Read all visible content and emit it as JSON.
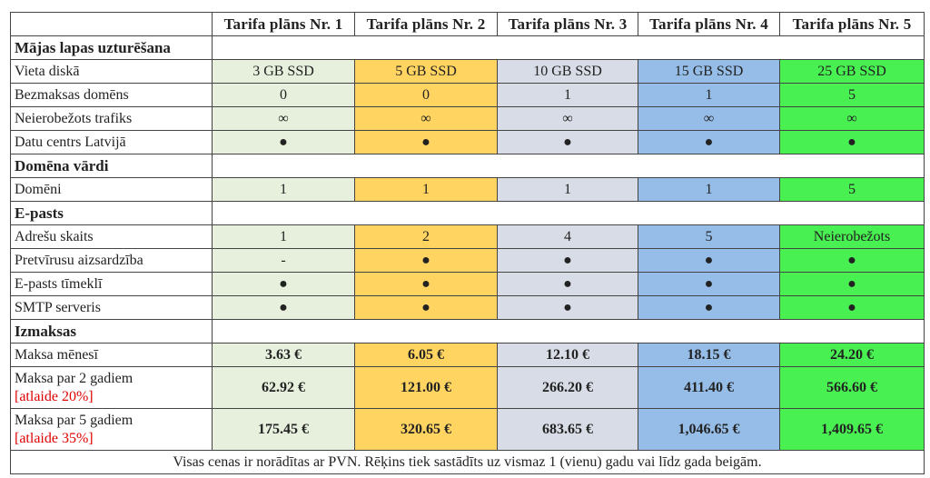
{
  "plans": [
    "Tarifa plāns Nr. 1",
    "Tarifa plāns Nr. 2",
    "Tarifa plāns Nr. 3",
    "Tarifa plāns Nr. 4",
    "Tarifa plāns Nr. 5"
  ],
  "plan_colors": [
    "#e6f0dc",
    "#ffd460",
    "#d8dce6",
    "#95bde8",
    "#48f052"
  ],
  "sections": {
    "hosting": {
      "title": "Mājas lapas uzturēšana",
      "rows": [
        {
          "label": "Vieta diskā",
          "values": [
            "3 GB SSD",
            "5 GB SSD",
            "10 GB SSD",
            "15 GB SSD",
            "25 GB SSD"
          ]
        },
        {
          "label": "Bezmaksas domēns",
          "values": [
            "0",
            "0",
            "1",
            "1",
            "5"
          ]
        },
        {
          "label": "Neierobežots trafiks",
          "values": [
            "∞",
            "∞",
            "∞",
            "∞",
            "∞"
          ]
        },
        {
          "label": "Datu centrs Latvijā",
          "values": [
            "●",
            "●",
            "●",
            "●",
            "●"
          ]
        }
      ]
    },
    "domains": {
      "title": "Domēna vārdi",
      "rows": [
        {
          "label": "Domēni",
          "values": [
            "1",
            "1",
            "1",
            "1",
            "5"
          ]
        }
      ]
    },
    "email": {
      "title": "E-pasts",
      "rows": [
        {
          "label": "Adrešu skaits",
          "values": [
            "1",
            "2",
            "4",
            "5",
            "Neierobežots"
          ]
        },
        {
          "label": "Pretvīrusu aizsardzība",
          "values": [
            "-",
            "●",
            "●",
            "●",
            "●"
          ]
        },
        {
          "label": "E-pasts tīmeklī",
          "values": [
            "●",
            "●",
            "●",
            "●",
            "●"
          ]
        },
        {
          "label": "SMTP serveris",
          "values": [
            "●",
            "●",
            "●",
            "●",
            "●"
          ]
        }
      ]
    },
    "costs": {
      "title": "Izmaksas",
      "rows": [
        {
          "label": "Maksa mēnesī",
          "discount": "",
          "values": [
            "3.63 €",
            "6.05 €",
            "12.10 €",
            "18.15 €",
            "24.20 €"
          ]
        },
        {
          "label": "Maksa par 2 gadiem",
          "discount": "[atlaide 20%]",
          "values": [
            "62.92 €",
            "121.00 €",
            "266.20 €",
            "411.40 €",
            "566.60 €"
          ]
        },
        {
          "label": "Maksa par 5 gadiem",
          "discount": "[atlaide 35%]",
          "values": [
            "175.45 €",
            "320.65 €",
            "683.65 €",
            "1,046.65 €",
            "1,409.65 €"
          ]
        }
      ]
    }
  },
  "footer": "Visas cenas ir norādītas ar PVN. Rēķins tiek sastādīts uz vismaz 1 (vienu) gadu vai līdz gada beigām."
}
